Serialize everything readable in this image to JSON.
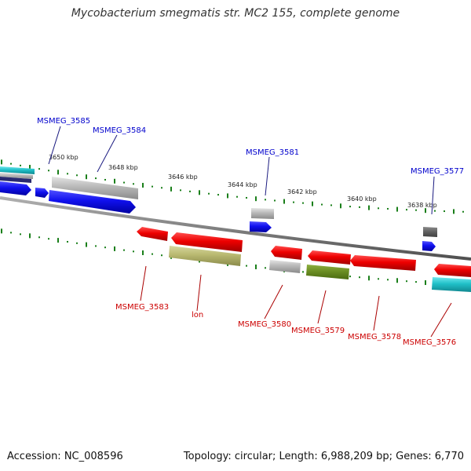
{
  "title": "Mycobacterium smegmatis str. MC2 155, complete genome",
  "footer": {
    "accession": "Accession: NC_008596",
    "summary": "Topology: circular; Length: 6,988,209 bp; Genes: 6,770"
  },
  "colors": {
    "forward_label": "#0000cc",
    "reverse_label": "#cc0000",
    "backbone": "#808080",
    "ticks": "#1a7f1a",
    "gene_blue": "#1010ee",
    "gene_red": "#ee0000",
    "gene_gray": "#b8b8b8",
    "gene_dark_gray": "#606060",
    "gene_olive": "#b8b870",
    "gene_green": "#6b8e23",
    "gene_cyan": "#20c0c8"
  },
  "scale_labels": [
    "3650 kbp",
    "3648 kbp",
    "3646 kbp",
    "3644 kbp",
    "3642 kbp",
    "3640 kbp",
    "3638 kbp"
  ],
  "gene_labels": {
    "forward": [
      "MSMEG_3585",
      "MSMEG_3584",
      "MSMEG_3581",
      "MSMEG_3577"
    ],
    "reverse": [
      "MSMEG_3583",
      "lon",
      "MSMEG_3580",
      "MSMEG_3579",
      "MSMEG_3578",
      "MSMEG_3576"
    ]
  }
}
